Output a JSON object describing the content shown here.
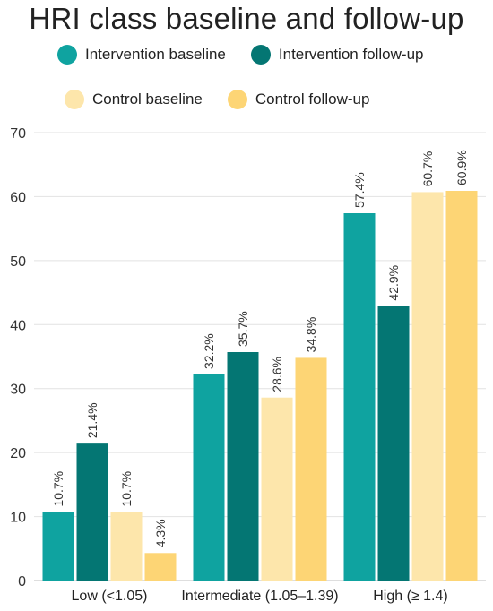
{
  "chart_data": {
    "type": "bar",
    "title": "HRI class baseline and follow-up",
    "xlabel": "",
    "ylabel": "",
    "ylim": [
      0,
      70
    ],
    "yticks": [
      0,
      10,
      20,
      30,
      40,
      50,
      60,
      70
    ],
    "grid": true,
    "legend_placement": "top",
    "categories": [
      "Low (<1.05)",
      "Intermediate (1.05–1.39)",
      "High (≥ 1.4)"
    ],
    "series": [
      {
        "name": "Intervention baseline",
        "color": "#0fa3a0",
        "values": [
          10.7,
          32.2,
          57.4
        ],
        "labels": [
          "10.7%",
          "32.2%",
          "57.4%"
        ]
      },
      {
        "name": "Intervention follow-up",
        "color": "#047673",
        "values": [
          21.4,
          35.7,
          42.9
        ],
        "labels": [
          "21.4%",
          "35.7%",
          "42.9%"
        ]
      },
      {
        "name": "Control baseline",
        "color": "#fde6ab",
        "values": [
          10.7,
          28.6,
          60.7
        ],
        "labels": [
          "10.7%",
          "28.6%",
          "60.7%"
        ]
      },
      {
        "name": "Control follow-up",
        "color": "#fdd575",
        "values": [
          4.3,
          34.8,
          60.9
        ],
        "labels": [
          "4.3%",
          "34.8%",
          "60.9%"
        ]
      }
    ]
  }
}
